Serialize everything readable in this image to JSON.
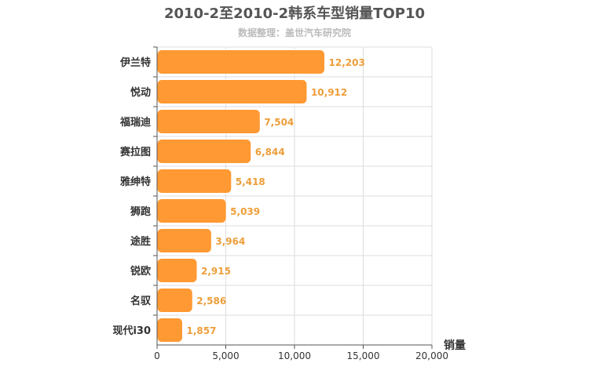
{
  "chart_data": {
    "type": "bar",
    "orientation": "horizontal",
    "title": "2010-2至2010-2韩系车型销量TOP10",
    "subtitle": "数据整理：盖世汽车研究院",
    "categories": [
      "伊兰特",
      "悦动",
      "福瑞迪",
      "赛拉图",
      "雅绅特",
      "狮跑",
      "途胜",
      "锐欧",
      "名驭",
      "现代i30"
    ],
    "values": [
      12203,
      10912,
      7504,
      6844,
      5418,
      5039,
      3964,
      2915,
      2586,
      1857
    ],
    "value_labels": [
      "12,203",
      "10,912",
      "7,504",
      "6,844",
      "5,418",
      "5,039",
      "3,964",
      "2,915",
      "2,586",
      "1,857"
    ],
    "xlabel": "销量",
    "xlim": [
      0,
      20000
    ],
    "xticks": [
      0,
      5000,
      10000,
      15000,
      20000
    ],
    "xtick_labels": [
      "0",
      "5,000",
      "10,000",
      "15,000",
      "20,000"
    ],
    "grid": true,
    "colors": {
      "bar": "#ff9933",
      "value_label": "#ee9e3a",
      "title": "#555555",
      "subtitle": "#bbbbbb"
    }
  }
}
